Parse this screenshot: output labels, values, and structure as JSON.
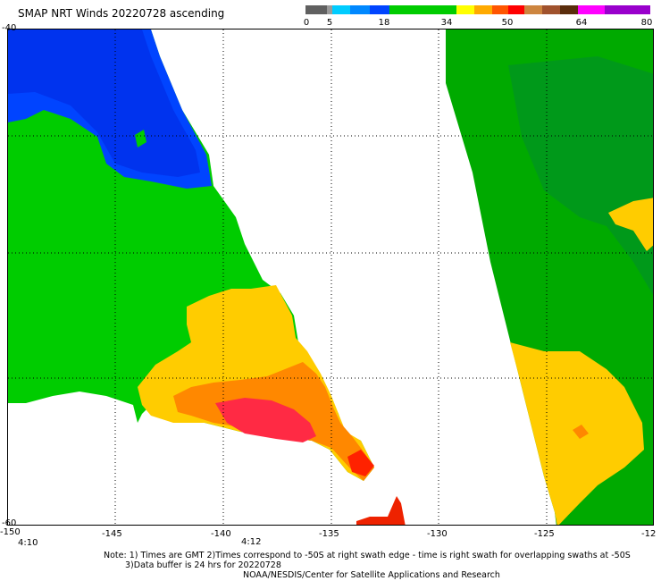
{
  "title": "SMAP NRT Winds 20220728 ascending",
  "colorbar": {
    "labels": [
      "0",
      "5",
      "18",
      "34",
      "50",
      "64",
      "80"
    ],
    "colors": {
      "calm": "#606060",
      "light": "#00aaff",
      "moderate": "#0044ff",
      "breeze": "#00cc00",
      "gale": "#ffcc00",
      "storm": "#ff0000",
      "hurricane": "#8b4513",
      "extreme": "#cc00cc"
    }
  },
  "axes": {
    "lon_labels": [
      "-150",
      "-145",
      "-140",
      "-135",
      "-130",
      "-125",
      "-12"
    ],
    "lat_labels": [
      "-40",
      "-60"
    ],
    "grid": "dotted"
  },
  "times": [
    "4:10",
    "4:12"
  ],
  "notes": {
    "line1": "Note: 1) Times are GMT 2)Times correspond to -50S at right swath edge - time is right swath for overlapping swaths at -50S",
    "line2": "3)Data buffer is 24 hrs for 20220728",
    "line3": "NOAA/NESDIS/Center for Satellite Applications and Research"
  }
}
